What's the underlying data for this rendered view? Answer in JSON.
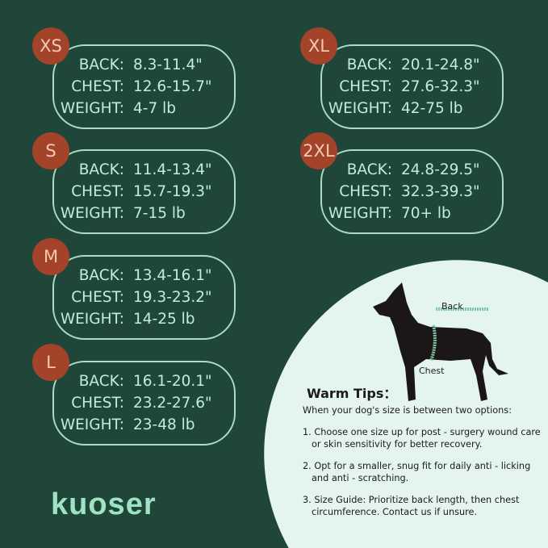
{
  "sizes": [
    {
      "size": "XS",
      "back": "8.3-11.4\"",
      "chest": "12.6-15.7\"",
      "weight": "4-7 lb"
    },
    {
      "size": "S",
      "back": "11.4-13.4\"",
      "chest": "15.7-19.3\"",
      "weight": "7-15 lb"
    },
    {
      "size": "M",
      "back": "13.4-16.1\"",
      "chest": "19.3-23.2\"",
      "weight": "14-25 lb"
    },
    {
      "size": "L",
      "back": "16.1-20.1\"",
      "chest": "23.2-27.6\"",
      "weight": "23-48 lb"
    },
    {
      "size": "XL",
      "back": "20.1-24.8\"",
      "chest": "27.6-32.3\"",
      "weight": "42-75 lb"
    },
    {
      "size": "2XL",
      "back": "24.8-29.5\"",
      "chest": "32.3-39.3\"",
      "weight": "70+ lb"
    }
  ],
  "labels": {
    "back": "BACK:",
    "chest": "CHEST:",
    "weight": "WEIGHT:"
  },
  "diagram": {
    "back": "Back",
    "chest": "Chest"
  },
  "tips": {
    "title": "Warm Tips：",
    "intro": "When your dog's size is between two options:",
    "items": [
      "1. Choose one size up for post - surgery wound care or skin sensitivity for better recovery.",
      "2. Opt for a smaller, snug fit for daily anti - licking and anti - scratching.",
      "3. Size Guide: Prioritize back length, then chest circumference. Contact us if unsure."
    ]
  },
  "brand": {
    "logo": "kuoser"
  },
  "colors": {
    "background": "#1f4639",
    "text": "#bfeedb",
    "badge": "#a3432a",
    "panel": "#e3f5ee"
  }
}
